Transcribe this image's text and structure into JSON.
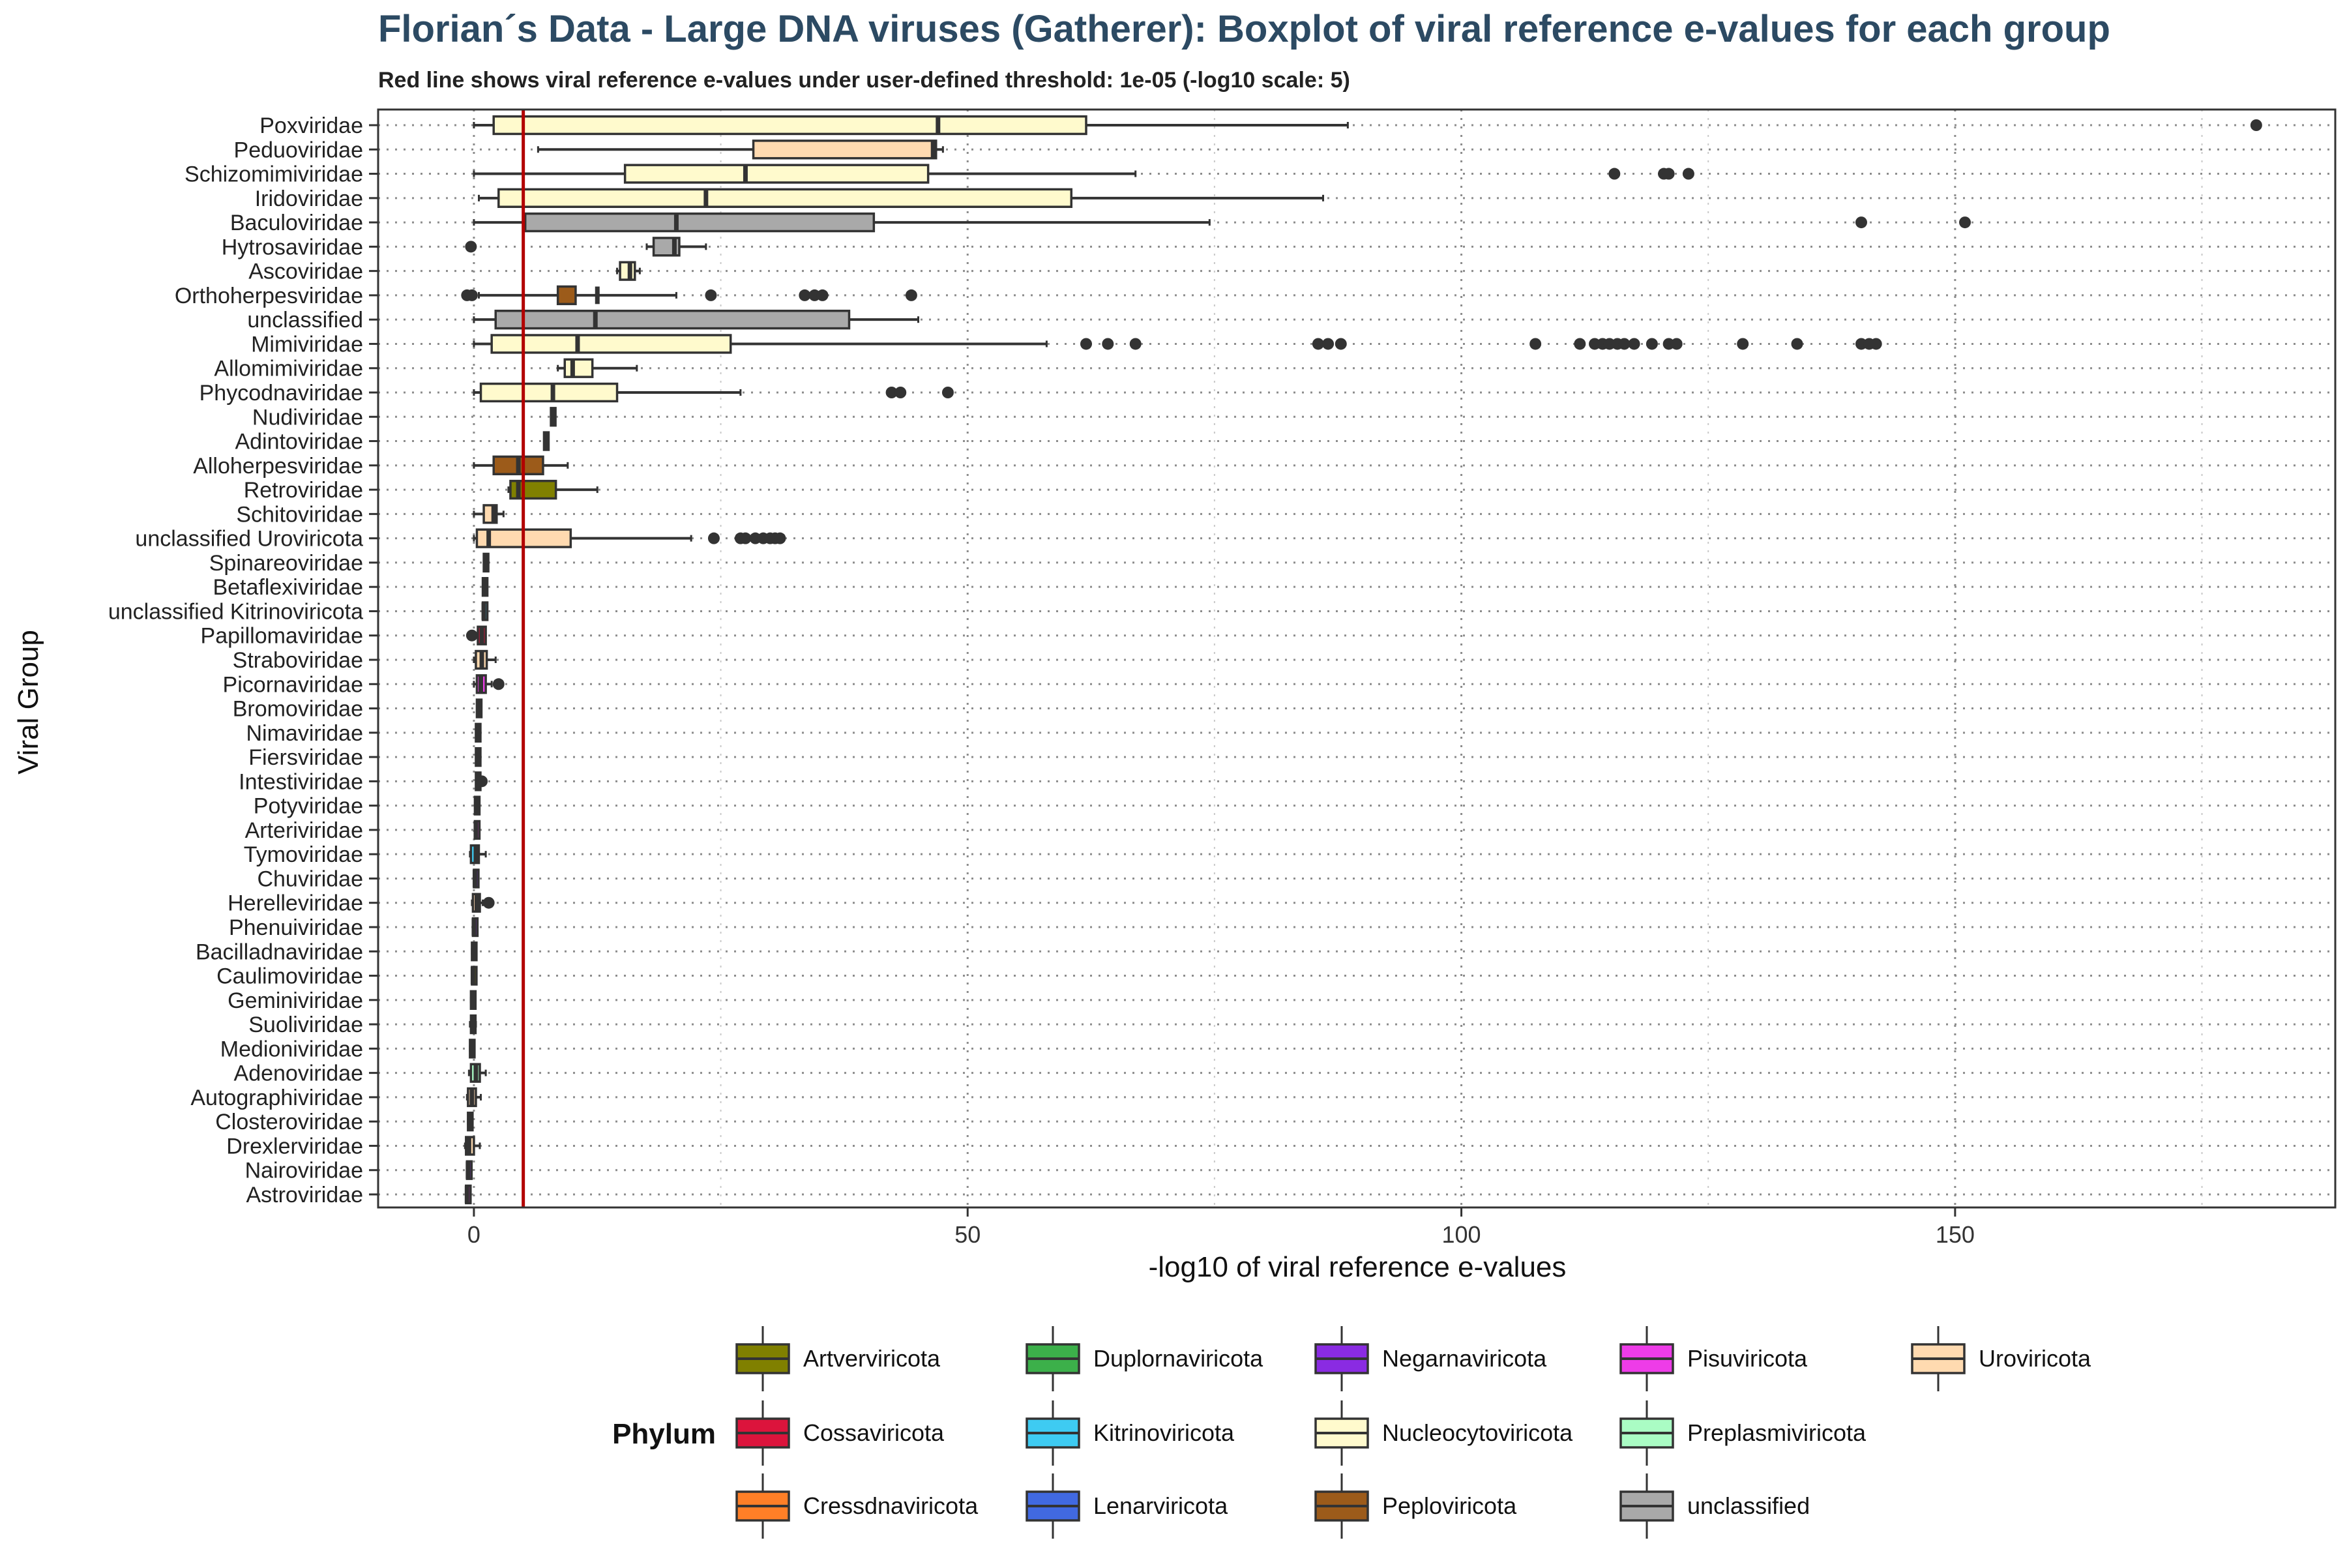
{
  "colors": {
    "title": "#2c4a63",
    "threshold_line": "#b20000",
    "grid": "#8c8c8c",
    "box_stroke": "#333333",
    "axis_text": "#222222"
  },
  "chart_data": {
    "type": "boxplot",
    "title": "Florian´s Data - Large DNA viruses (Gatherer): Boxplot of viral reference e-values for each group",
    "subtitle": "Red line shows viral reference e-values under user-defined threshold: 1e-05 (-log10 scale: 5)",
    "xlabel": "-log10 of viral reference e-values",
    "ylabel": "Viral Group",
    "xlim": [
      -9.7,
      188.5
    ],
    "x_ticks": [
      0,
      50,
      100,
      150
    ],
    "x_tick_labels": [
      "0",
      "50",
      "100",
      "150"
    ],
    "grid": true,
    "threshold": 5,
    "legend": {
      "title": "Phylum",
      "placement": "bottom",
      "columns": [
        [
          "Artverviricota",
          "Cossaviricota",
          "Cressdnaviricota"
        ],
        [
          "Duplornaviricota",
          "Kitrinoviricota",
          "Lenarviricota"
        ],
        [
          "Negarnaviricota",
          "Nucleocytoviricota",
          "Peploviricota"
        ],
        [
          "Pisuviricota",
          "Preplasmiviricota",
          "unclassified"
        ],
        [
          "Uroviricota"
        ]
      ],
      "colors": {
        "Artverviricota": "#808000",
        "Cossaviricota": "#dc143c",
        "Cressdnaviricota": "#ff7f27",
        "Duplornaviricota": "#3cb04a",
        "Kitrinoviricota": "#3ecbf2",
        "Lenarviricota": "#4169e1",
        "Negarnaviricota": "#8a2be2",
        "Nucleocytoviricota": "#fffacd",
        "Peploviricota": "#9c5b1a",
        "Pisuviricota": "#ee3ce8",
        "Preplasmiviricota": "#aafcc4",
        "unclassified": "#a9a9a9",
        "Uroviricota": "#ffdab0"
      }
    },
    "groups": [
      {
        "name": "Poxviridae",
        "phylum": "Nucleocytoviricota",
        "stats": [
          0,
          2,
          47,
          62,
          88.5
        ],
        "outliers": [
          180.5
        ]
      },
      {
        "name": "Peduoviridae",
        "phylum": "Uroviricota",
        "stats": [
          6.5,
          28.3,
          46.5,
          46.8,
          47.5
        ],
        "outliers": []
      },
      {
        "name": "Schizomimiviridae",
        "phylum": "Nucleocytoviricota",
        "stats": [
          0,
          15.3,
          27.5,
          46,
          67
        ],
        "outliers": [
          115.5,
          120.5,
          121,
          123
        ]
      },
      {
        "name": "Iridoviridae",
        "phylum": "Nucleocytoviricota",
        "stats": [
          0.5,
          2.5,
          23.5,
          60.5,
          86
        ],
        "outliers": []
      },
      {
        "name": "Baculoviridae",
        "phylum": "unclassified",
        "stats": [
          0,
          5.2,
          20.5,
          40.5,
          74.5
        ],
        "outliers": [
          140.5,
          151
        ]
      },
      {
        "name": "Hytrosaviridae",
        "phylum": "unclassified",
        "stats": [
          17.5,
          18.2,
          20.3,
          20.8,
          23.5
        ],
        "outliers": [
          -0.3
        ]
      },
      {
        "name": "Ascoviridae",
        "phylum": "Nucleocytoviricota",
        "stats": [
          14.5,
          14.8,
          15.8,
          16.3,
          16.8
        ],
        "outliers": []
      },
      {
        "name": "Orthoherpesviridae",
        "phylum": "Peploviricota",
        "stats": [
          0.5,
          8.5,
          12.5,
          10.3,
          20.5
        ],
        "outliers": [
          -0.7,
          -0.2,
          24,
          33.5,
          34.5,
          35.3,
          44.3
        ]
      },
      {
        "name": "unclassified",
        "phylum": "unclassified",
        "stats": [
          0,
          2.2,
          12.3,
          38,
          45
        ],
        "outliers": []
      },
      {
        "name": "Mimiviridae",
        "phylum": "Nucleocytoviricota",
        "stats": [
          0,
          1.8,
          10.5,
          26,
          58
        ],
        "outliers": [
          62,
          64.2,
          67,
          85.5,
          86.5,
          87.8,
          107.5,
          112,
          113.5,
          114.3,
          115,
          115.8,
          116.5,
          117.5,
          119.3,
          121,
          121.8,
          128.5,
          134,
          140.5,
          141.3,
          142
        ]
      },
      {
        "name": "Allomimiviridae",
        "phylum": "Nucleocytoviricota",
        "stats": [
          8.5,
          9.2,
          10,
          12,
          16.5
        ],
        "outliers": []
      },
      {
        "name": "Phycodnaviridae",
        "phylum": "Nucleocytoviricota",
        "stats": [
          0,
          0.7,
          8,
          14.5,
          27
        ],
        "outliers": [
          42.3,
          43.2,
          48
        ]
      },
      {
        "name": "Nudiviridae",
        "phylum": "Nucleocytoviricota",
        "stats": [
          7.8,
          7.8,
          8,
          8.2,
          8.2
        ],
        "outliers": []
      },
      {
        "name": "Adintoviridae",
        "phylum": "unclassified",
        "stats": [
          7.1,
          7.1,
          7.3,
          7.5,
          7.5
        ],
        "outliers": []
      },
      {
        "name": "Alloherpesviridae",
        "phylum": "Peploviricota",
        "stats": [
          0,
          2,
          4.5,
          7,
          9.5
        ],
        "outliers": []
      },
      {
        "name": "Retroviridae",
        "phylum": "Artverviricota",
        "stats": [
          3.5,
          3.7,
          4.5,
          8.3,
          12.5
        ],
        "outliers": []
      },
      {
        "name": "Schitoviridae",
        "phylum": "Uroviricota",
        "stats": [
          0,
          1,
          2,
          2.3,
          3
        ],
        "outliers": []
      },
      {
        "name": "unclassified Uroviricota",
        "phylum": "Uroviricota",
        "stats": [
          0,
          0.3,
          1.5,
          9.8,
          22
        ],
        "outliers": [
          24.3,
          27,
          27.5,
          28.5,
          29.3,
          30,
          30.5,
          31
        ]
      },
      {
        "name": "Spinareoviridae",
        "phylum": "Duplornaviricota",
        "stats": [
          1,
          1,
          1.2,
          1.4,
          1.4
        ],
        "outliers": []
      },
      {
        "name": "Betaflexiviridae",
        "phylum": "Kitrinoviricota",
        "stats": [
          0.9,
          0.9,
          1.1,
          1.3,
          1.3
        ],
        "outliers": []
      },
      {
        "name": "unclassified Kitrinoviricota",
        "phylum": "Kitrinoviricota",
        "stats": [
          0.9,
          0.9,
          1.0,
          1.2,
          1.2
        ],
        "outliers": []
      },
      {
        "name": "Papillomaviridae",
        "phylum": "Cossaviricota",
        "stats": [
          0.4,
          0.4,
          0.8,
          1.2,
          1.2
        ],
        "outliers": [
          -0.2
        ]
      },
      {
        "name": "Straboviridae",
        "phylum": "Uroviricota",
        "stats": [
          0,
          0.2,
          0.8,
          1.3,
          2.2
        ],
        "outliers": []
      },
      {
        "name": "Picornaviridae",
        "phylum": "Pisuviricota",
        "stats": [
          0,
          0.3,
          0.7,
          1.2,
          1.8
        ],
        "outliers": [
          2.5
        ]
      },
      {
        "name": "Bromoviridae",
        "phylum": "Kitrinoviricota",
        "stats": [
          0.3,
          0.3,
          0.5,
          0.7,
          0.7
        ],
        "outliers": []
      },
      {
        "name": "Nimaviridae",
        "phylum": "Nucleocytoviricota",
        "stats": [
          0.2,
          0.2,
          0.4,
          0.6,
          0.6
        ],
        "outliers": []
      },
      {
        "name": "Fiersviridae",
        "phylum": "Lenarviricota",
        "stats": [
          0.2,
          0.2,
          0.4,
          0.6,
          0.6
        ],
        "outliers": []
      },
      {
        "name": "Intestiviridae",
        "phylum": "Uroviricota",
        "stats": [
          0.2,
          0.2,
          0.4,
          0.6,
          0.6
        ],
        "outliers": [
          0.8
        ]
      },
      {
        "name": "Potyviridae",
        "phylum": "Pisuviricota",
        "stats": [
          0.1,
          0.1,
          0.3,
          0.5,
          0.5
        ],
        "outliers": []
      },
      {
        "name": "Arteriviridae",
        "phylum": "Pisuviricota",
        "stats": [
          0.1,
          0.1,
          0.2,
          0.4,
          0.4
        ],
        "outliers": []
      },
      {
        "name": "Tymoviridae",
        "phylum": "Kitrinoviricota",
        "stats": [
          -0.4,
          -0.3,
          0.2,
          0.5,
          1.2
        ],
        "outliers": []
      },
      {
        "name": "Chuviridae",
        "phylum": "Negarnaviricota",
        "stats": [
          0.0,
          0.0,
          0.1,
          0.3,
          0.3
        ],
        "outliers": []
      },
      {
        "name": "Herelleviridae",
        "phylum": "Uroviricota",
        "stats": [
          -0.2,
          -0.1,
          0.3,
          0.6,
          0.9
        ],
        "outliers": [
          1.5
        ]
      },
      {
        "name": "Phenuiviridae",
        "phylum": "Negarnaviricota",
        "stats": [
          -0.1,
          -0.1,
          0.0,
          0.2,
          0.2
        ],
        "outliers": []
      },
      {
        "name": "Bacilladnaviridae",
        "phylum": "Cressdnaviricota",
        "stats": [
          -0.2,
          -0.2,
          0.0,
          0.1,
          0.1
        ],
        "outliers": []
      },
      {
        "name": "Caulimoviridae",
        "phylum": "Artverviricota",
        "stats": [
          -0.2,
          -0.2,
          -0.1,
          0.1,
          0.1
        ],
        "outliers": []
      },
      {
        "name": "Geminiviridae",
        "phylum": "Cressdnaviricota",
        "stats": [
          -0.3,
          -0.3,
          -0.1,
          0.0,
          0.0
        ],
        "outliers": []
      },
      {
        "name": "Suoliviridae",
        "phylum": "Uroviricota",
        "stats": [
          -0.4,
          -0.3,
          -0.1,
          0.1,
          0.2
        ],
        "outliers": []
      },
      {
        "name": "Medioniviridae",
        "phylum": "Uroviricota",
        "stats": [
          -0.4,
          -0.4,
          -0.2,
          0.0,
          0.0
        ],
        "outliers": []
      },
      {
        "name": "Adenoviridae",
        "phylum": "Preplasmiviricota",
        "stats": [
          -0.5,
          -0.3,
          0.2,
          0.6,
          1.2
        ],
        "outliers": []
      },
      {
        "name": "Autographiviridae",
        "phylum": "Uroviricota",
        "stats": [
          -0.7,
          -0.6,
          -0.2,
          0.2,
          0.7
        ],
        "outliers": []
      },
      {
        "name": "Closteroviridae",
        "phylum": "Kitrinoviricota",
        "stats": [
          -0.6,
          -0.6,
          -0.4,
          -0.2,
          -0.2
        ],
        "outliers": []
      },
      {
        "name": "Drexlerviridae",
        "phylum": "Uroviricota",
        "stats": [
          -0.9,
          -0.8,
          -0.5,
          0.0,
          0.6
        ],
        "outliers": []
      },
      {
        "name": "Nairoviridae",
        "phylum": "Negarnaviricota",
        "stats": [
          -0.7,
          -0.7,
          -0.6,
          -0.4,
          -0.4
        ],
        "outliers": []
      },
      {
        "name": "Astroviridae",
        "phylum": "Pisuviricota",
        "stats": [
          -0.8,
          -0.8,
          -0.7,
          -0.5,
          -0.5
        ],
        "outliers": []
      }
    ]
  }
}
